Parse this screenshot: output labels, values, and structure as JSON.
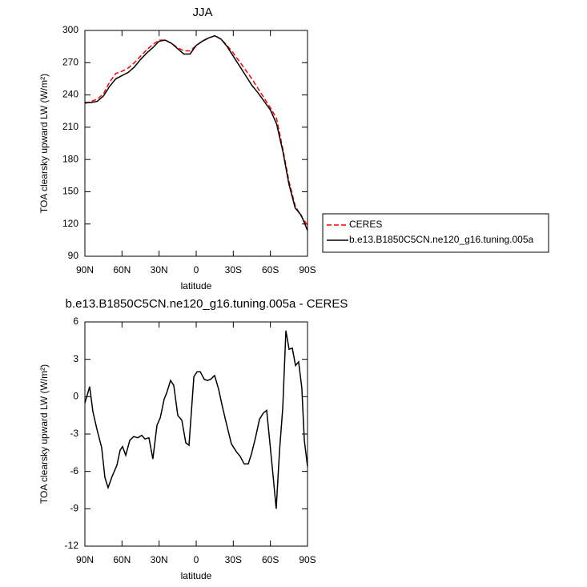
{
  "chart_data": [
    {
      "type": "line",
      "title": "JJA",
      "xlabel": "latitude",
      "ylabel": "TOA clearsky upward LW (W/m²)",
      "x": [
        90,
        85,
        80,
        75,
        70,
        65,
        60,
        55,
        50,
        45,
        40,
        35,
        30,
        25,
        20,
        15,
        10,
        5,
        0,
        -5,
        -10,
        -15,
        -20,
        -25,
        -30,
        -35,
        -40,
        -45,
        -50,
        -55,
        -60,
        -65,
        -70,
        -75,
        -80,
        -85,
        -90
      ],
      "series": [
        {
          "name": "CERES",
          "color": "#ff0000",
          "line_style": "dashed",
          "values": [
            232,
            234,
            236,
            241,
            252,
            260,
            262,
            265,
            270,
            276,
            282,
            287,
            291,
            291,
            288,
            284,
            281,
            281,
            286,
            290,
            293,
            295,
            292,
            286,
            279,
            271,
            263,
            255,
            246,
            237,
            228,
            218,
            190,
            160,
            137,
            127,
            119
          ]
        },
        {
          "name": "b.e13.B1850C5CN.ne120_g16.tuning.005a",
          "color": "#000000",
          "line_style": "solid",
          "values": [
            233,
            233,
            234,
            239,
            248,
            255,
            258,
            261,
            266,
            273,
            279,
            284,
            290,
            291,
            288,
            283,
            278,
            278,
            286,
            290,
            293,
            295,
            292,
            285,
            276,
            267,
            258,
            249,
            242,
            234,
            226,
            213,
            188,
            157,
            135,
            128,
            114
          ]
        }
      ],
      "xlim": [
        90,
        -90
      ],
      "xticks": [
        {
          "value": 90,
          "label": "90N"
        },
        {
          "value": 60,
          "label": "60N"
        },
        {
          "value": 30,
          "label": "30N"
        },
        0,
        {
          "value": -30,
          "label": "30S"
        },
        {
          "value": -60,
          "label": "60S"
        },
        {
          "value": -90,
          "label": "90S"
        }
      ],
      "ylim": [
        90,
        300
      ],
      "yticks": [
        90,
        120,
        150,
        180,
        210,
        240,
        270,
        300
      ],
      "legend": "outside right"
    },
    {
      "type": "line",
      "title": "b.e13.B1850C5CN.ne120_g16.tuning.005a - CERES",
      "xlabel": "latitude",
      "ylabel": "TOA clearsky upward LW (W/m²)",
      "x": [
        90,
        86.1,
        83.5,
        80.3,
        76.4,
        73.8,
        71.2,
        68,
        64.1,
        61.5,
        59.6,
        57,
        53.7,
        50.5,
        47.3,
        44,
        41.4,
        38.2,
        35,
        31.7,
        29.1,
        25.9,
        23.9,
        20.7,
        18.1,
        14.9,
        11.6,
        8.4,
        5.8,
        1.9,
        -0.7,
        -3.3,
        -6.5,
        -9.1,
        -11.7,
        -14.9,
        -18.1,
        -20.7,
        -24,
        -28.5,
        -32.4,
        -35.6,
        -38.8,
        -42.1,
        -44.7,
        -47.9,
        -51.2,
        -54.4,
        -57,
        -59.6,
        -62.2,
        -64.7,
        -67.4,
        -70,
        -72.5,
        -75.1,
        -77.7,
        -80.3,
        -82.8,
        -85.4,
        -87.4,
        -90
      ],
      "series": [
        {
          "color": "#000000",
          "line_style": "solid",
          "values": [
            -0.5,
            0.8,
            -1.2,
            -2.6,
            -4.1,
            -6.5,
            -7.3,
            -6.4,
            -5.5,
            -4.3,
            -4.0,
            -4.7,
            -3.5,
            -3.2,
            -3.3,
            -3.1,
            -3.4,
            -3.3,
            -5.0,
            -2.3,
            -1.7,
            -0.2,
            0.3,
            1.3,
            0.9,
            -1.5,
            -1.9,
            -3.7,
            -3.9,
            1.6,
            2.0,
            2.0,
            1.4,
            1.3,
            1.4,
            1.7,
            0.6,
            -0.6,
            -2.0,
            -3.8,
            -4.4,
            -4.8,
            -5.4,
            -5.4,
            -4.6,
            -3.3,
            -1.8,
            -1.3,
            -1.1,
            -3.7,
            -6.4,
            -9.0,
            -4.3,
            -0.9,
            5.3,
            3.8,
            3.9,
            2.5,
            2.8,
            0.7,
            -3.5,
            -5.6
          ]
        }
      ],
      "xlim": [
        90,
        -90
      ],
      "xticks": [
        {
          "value": 90,
          "label": "90N"
        },
        {
          "value": 60,
          "label": "60N"
        },
        {
          "value": 30,
          "label": "30N"
        },
        0,
        {
          "value": -30,
          "label": "30S"
        },
        {
          "value": -60,
          "label": "60S"
        },
        {
          "value": -90,
          "label": "90S"
        }
      ],
      "ylim": [
        -12,
        6
      ],
      "yticks": [
        6,
        3,
        0,
        -3,
        -6,
        -9,
        -12
      ]
    }
  ]
}
